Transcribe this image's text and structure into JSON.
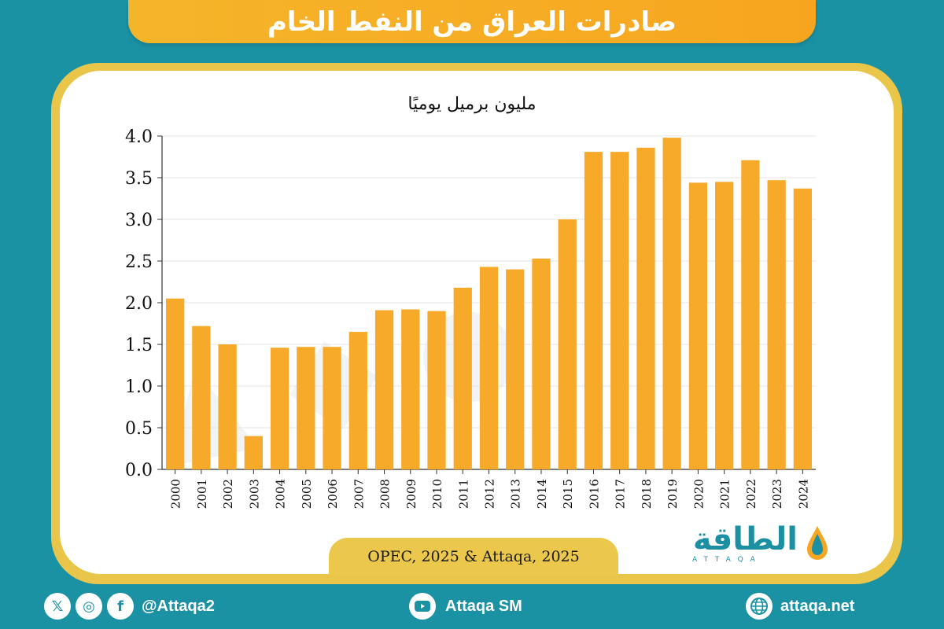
{
  "title": "صادرات العراق من النفط الخام",
  "unit_label": "مليون برميل يوميًا",
  "source": "OPEC, 2025 & Attaqa, 2025",
  "logo": {
    "arabic": "الطاقة",
    "latin": "ATTAQA"
  },
  "footer": {
    "social_handle": "@Attaqa2",
    "youtube": "Attaqa SM",
    "website": "attaqa.net"
  },
  "colors": {
    "background": "#1b92a4",
    "bar": "#f7aa2a",
    "banner": "#f5b52a",
    "frame": "#e9c64a"
  },
  "chart_data": {
    "type": "bar",
    "categories": [
      "2000",
      "2001",
      "2002",
      "2003",
      "2004",
      "2005",
      "2006",
      "2007",
      "2008",
      "2009",
      "2010",
      "2011",
      "2012",
      "2013",
      "2014",
      "2015",
      "2016",
      "2017",
      "2018",
      "2019",
      "2020",
      "2021",
      "2022",
      "2023",
      "2024"
    ],
    "values": [
      2.05,
      1.72,
      1.5,
      0.4,
      1.46,
      1.47,
      1.47,
      1.65,
      1.91,
      1.92,
      1.9,
      2.18,
      2.43,
      2.4,
      2.53,
      3.0,
      3.81,
      3.81,
      3.86,
      3.98,
      3.44,
      3.45,
      3.71,
      3.47,
      3.37
    ],
    "ylabel": "مليون برميل يوميًا",
    "ylim": [
      0,
      4
    ],
    "yticks": [
      "0.0",
      "0.5",
      "1.0",
      "1.5",
      "2.0",
      "2.5",
      "3.0",
      "3.5",
      "4.0"
    ],
    "grid": true,
    "x_tick_rotation": "vertical"
  }
}
